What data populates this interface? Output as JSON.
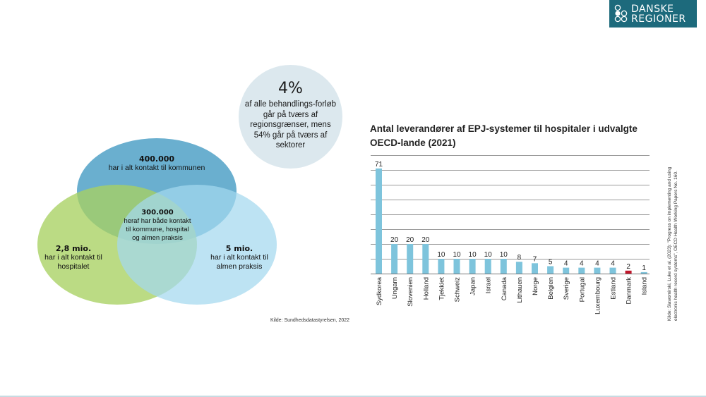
{
  "logo": {
    "line1": "DANSKE",
    "line2": "REGIONER",
    "bg_color": "#1d6a7c"
  },
  "venn": {
    "kommune": {
      "value": "400.000",
      "text": "har i alt kontakt til kommunen",
      "color": "#6aafcf"
    },
    "hospital": {
      "value": "2,8 mio.",
      "text": "har i alt kontakt til hospitalet",
      "color": "#a8d161"
    },
    "almen_praksis": {
      "value": "5 mio.",
      "text": "har i alt kontakt til almen praksis",
      "color": "#a3d8ef"
    },
    "center": {
      "value": "300.000",
      "text": "heraf har både kontakt til kommune, hospital og almen praksis"
    },
    "source": "Kilde: Sundhedsdatastyrelsen, 2022"
  },
  "callout": {
    "value": "4%",
    "text": "af alle behandlings-forløb går på tværs af regionsgrænser, mens 54% går på tværs af sektorer",
    "color": "#dce8ee"
  },
  "chart_data": {
    "type": "bar",
    "title": "Antal leverandører af EPJ-systemer til hospitaler i udvalgte OECD-lande (2021)",
    "xlabel": "",
    "ylabel": "",
    "ylim": [
      0,
      80
    ],
    "grid": true,
    "gridline_step": 10,
    "categories": [
      "Sydkorea",
      "Ungarn",
      "Slovenien",
      "Holland",
      "Tjekkiet",
      "Schweiz",
      "Japan",
      "Israel",
      "Canada",
      "Lithauen",
      "Norge",
      "Belgien",
      "Sverige",
      "Portugal",
      "Luxembourg",
      "Estland",
      "Danmark",
      "Island"
    ],
    "values": [
      71,
      20,
      20,
      20,
      10,
      10,
      10,
      10,
      10,
      8,
      7,
      5,
      4,
      4,
      4,
      4,
      2,
      1
    ],
    "highlight": "Danmark",
    "bar_color": "#7ec4dc",
    "highlight_color": "#c0172b",
    "source": "Kilde: Slawomirski, Luke et al. (2023): \"Progress on implementing and using electronic health record systems\", OECD Health Working Papers No. 160."
  }
}
